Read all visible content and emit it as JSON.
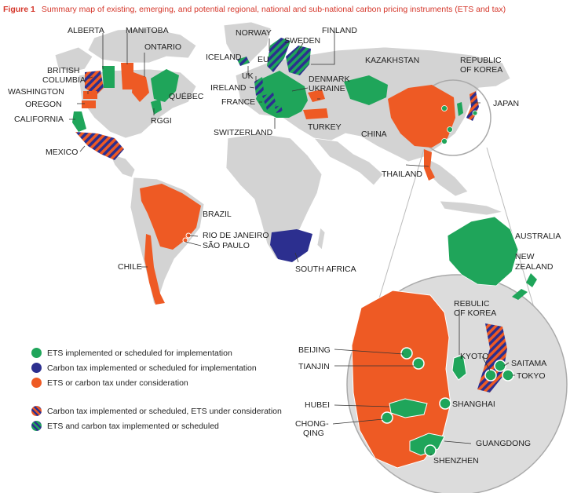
{
  "figure": {
    "number": "Figure 1",
    "title": "Summary map of existing, emerging, and potential regional, national and sub-national carbon pricing instruments (ETS and tax)"
  },
  "colors": {
    "ets": "#1fa55a",
    "tax": "#2c2f8f",
    "consideration": "#ee5a24",
    "land": "#d3d3d3",
    "accent": "#d5362a"
  },
  "labels": {
    "alberta": "ALBERTA",
    "manitoba": "MANITOBA",
    "ontario": "ONTARIO",
    "british_columbia_1": "BRITISH",
    "british_columbia_2": "COLUMBIA",
    "washington": "WASHINGTON",
    "oregon": "OREGON",
    "california": "CALIFORNIA",
    "quebec": "QUÉBEC",
    "rggi": "RGGI",
    "mexico": "MEXICO",
    "norway": "NORWAY",
    "finland": "FINLAND",
    "sweden": "SWEDEN",
    "iceland": "ICELAND",
    "eu": "EU",
    "uk": "UK",
    "ireland": "IRELAND",
    "france": "FRANCE",
    "denmark": "DENMARK",
    "ukraine": "UKRAINE",
    "switzerland": "SWITZERLAND",
    "turkey": "TURKEY",
    "kazakhstan": "KAZAKHSTAN",
    "korea_1": "REPUBLIC",
    "korea_2": "OF KOREA",
    "japan": "JAPAN",
    "china": "CHINA",
    "thailand": "THAILAND",
    "brazil": "BRAZIL",
    "rio": "RIO DE JANEIRO",
    "sao_paulo": "SÃO PAULO",
    "chile": "CHILE",
    "south_africa": "SOUTH AFRICA",
    "australia": "AUSTRALIA",
    "nz_1": "NEW",
    "nz_2": "ZEALAND",
    "inset_korea_1": "REBULIC",
    "inset_korea_2": "OF KOREA",
    "beijing": "BEIJING",
    "tianjin": "TIANJIN",
    "kyoto": "KYOTO",
    "saitama": "SAITAMA",
    "tokyo": "TOKYO",
    "hubei": "HUBEI",
    "shanghai": "SHANGHAI",
    "chongqing_1": "CHONG-",
    "chongqing_2": "QING",
    "guangdong": "GUANGDONG",
    "shenzhen": "SHENZHEN"
  },
  "legend": [
    {
      "label": "ETS implemented or scheduled for implementation",
      "style": "ets"
    },
    {
      "label": "Carbon tax implemented or scheduled for implementation",
      "style": "tax"
    },
    {
      "label": "ETS or carbon tax under consideration",
      "style": "consideration"
    },
    {
      "label": "Carbon tax implemented or scheduled, ETS under consideration",
      "style": "tax-consideration"
    },
    {
      "label": "ETS and carbon tax implemented or scheduled",
      "style": "ets-tax"
    }
  ]
}
